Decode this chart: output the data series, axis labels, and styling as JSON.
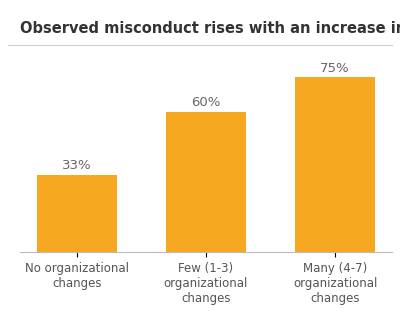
{
  "title": "Observed misconduct rises with an increase in organizational change",
  "categories": [
    "No organizational\nchanges",
    "Few (1-3)\norganizational\nchanges",
    "Many (4-7)\norganizational\nchanges"
  ],
  "values": [
    33,
    60,
    75
  ],
  "labels": [
    "33%",
    "60%",
    "75%"
  ],
  "bar_color": "#F5A820",
  "background_color": "#ffffff",
  "title_fontsize": 10.5,
  "label_fontsize": 9.5,
  "tick_fontsize": 8.5,
  "ylim": [
    0,
    88
  ],
  "separator_color": "#cccccc",
  "title_color": "#333333",
  "label_color": "#666666",
  "tick_color": "#555555"
}
